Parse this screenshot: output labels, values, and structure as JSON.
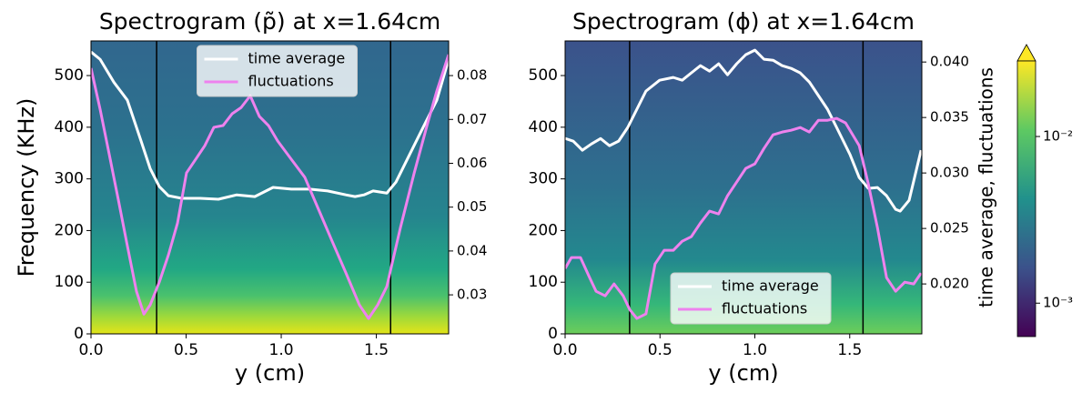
{
  "chart_data": [
    {
      "type": "line",
      "title": "Spectrogram (p̃) at x=1.64cm",
      "xlabel": "y (cm)",
      "ylabel": "Frequency (KHz)",
      "xlim": [
        0,
        1.88
      ],
      "xticks": [
        {
          "value": 0,
          "label": "0.0"
        },
        0.5,
        {
          "value": 1,
          "label": "1.0"
        },
        1.5
      ],
      "ylim": [
        0,
        567
      ],
      "yticks": [
        0,
        100,
        200,
        300,
        400,
        500
      ],
      "y2lim": [
        0.0211,
        0.0879
      ],
      "y2ticks": [
        0.03,
        0.04,
        0.05,
        0.06,
        0.07,
        0.08
      ],
      "vlines": [
        0.345,
        1.575
      ],
      "legend": "upper center",
      "series": [
        {
          "name": "time average",
          "color": "#ffffff",
          "axis": "y2",
          "x": [
            0,
            0.048,
            0.12,
            0.191,
            0.263,
            0.311,
            0.359,
            0.407,
            0.478,
            0.574,
            0.67,
            0.766,
            0.861,
            0.957,
            1.053,
            1.148,
            1.244,
            1.34,
            1.388,
            1.435,
            1.483,
            1.555,
            1.603,
            1.675,
            1.746,
            1.818,
            1.88
          ],
          "values": [
            0.0854,
            0.0837,
            0.0785,
            0.0744,
            0.0651,
            0.0588,
            0.0547,
            0.0526,
            0.052,
            0.052,
            0.0518,
            0.0528,
            0.0524,
            0.0545,
            0.0541,
            0.0541,
            0.0537,
            0.0528,
            0.0524,
            0.0528,
            0.0537,
            0.0532,
            0.0557,
            0.062,
            0.0682,
            0.0744,
            0.0837
          ]
        },
        {
          "name": "fluctuations",
          "color": "#ee82ee",
          "axis": "y2",
          "x": [
            0,
            0.048,
            0.096,
            0.144,
            0.191,
            0.239,
            0.278,
            0.311,
            0.359,
            0.407,
            0.455,
            0.502,
            0.55,
            0.598,
            0.646,
            0.694,
            0.742,
            0.789,
            0.837,
            0.885,
            0.933,
            0.981,
            1.053,
            1.124,
            1.196,
            1.268,
            1.34,
            1.411,
            1.459,
            1.507,
            1.555,
            1.627,
            1.699,
            1.77,
            1.818,
            1.88
          ],
          "values": [
            0.0817,
            0.0723,
            0.062,
            0.0516,
            0.0412,
            0.0308,
            0.0256,
            0.0277,
            0.0329,
            0.0391,
            0.0464,
            0.0578,
            0.0609,
            0.064,
            0.0682,
            0.0686,
            0.0713,
            0.0727,
            0.0754,
            0.0707,
            0.0686,
            0.0651,
            0.0609,
            0.0568,
            0.0495,
            0.0422,
            0.035,
            0.0277,
            0.0246,
            0.0277,
            0.0319,
            0.0454,
            0.0578,
            0.0692,
            0.0765,
            0.0848
          ]
        }
      ]
    },
    {
      "type": "line",
      "title": "Spectrogram (ϕ) at x=1.64cm",
      "xlabel": "y (cm)",
      "y2label": "time average, fluctuations",
      "xlim": [
        0,
        1.88
      ],
      "xticks": [
        {
          "value": 0,
          "label": "0.0"
        },
        0.5,
        {
          "value": 1,
          "label": "1.0"
        },
        1.5
      ],
      "ylim": [
        0,
        567
      ],
      "yticks": [
        0,
        100,
        200,
        300,
        400,
        500
      ],
      "y2lim": [
        0.0155,
        0.0419
      ],
      "y2ticks": [
        {
          "value": 0.02,
          "label": "0.020"
        },
        0.025,
        {
          "value": 0.03,
          "label": "0.030"
        },
        0.035,
        {
          "value": 0.04,
          "label": "0.040"
        }
      ],
      "vlines": [
        0.34,
        1.57
      ],
      "legend": "lower center",
      "series": [
        {
          "name": "time average",
          "color": "#ffffff",
          "axis": "y2",
          "x": [
            0,
            0.043,
            0.091,
            0.139,
            0.187,
            0.234,
            0.282,
            0.33,
            0.378,
            0.426,
            0.498,
            0.57,
            0.617,
            0.665,
            0.713,
            0.761,
            0.809,
            0.856,
            0.904,
            0.952,
            1.0,
            1.048,
            1.096,
            1.144,
            1.191,
            1.239,
            1.287,
            1.335,
            1.383,
            1.431,
            1.502,
            1.55,
            1.598,
            1.646,
            1.694,
            1.742,
            1.766,
            1.813,
            1.876
          ],
          "values": [
            0.03311,
            0.03287,
            0.03205,
            0.03262,
            0.0331,
            0.03246,
            0.03287,
            0.0341,
            0.03574,
            0.03738,
            0.03836,
            0.03861,
            0.03836,
            0.03902,
            0.03967,
            0.03918,
            0.03984,
            0.03885,
            0.03984,
            0.04066,
            0.04107,
            0.04025,
            0.04016,
            0.03967,
            0.03943,
            0.03902,
            0.0382,
            0.03697,
            0.03574,
            0.0341,
            0.03164,
            0.02959,
            0.02861,
            0.02869,
            0.02795,
            0.02672,
            0.02656,
            0.02754,
            0.03205
          ]
        },
        {
          "name": "fluctuations",
          "color": "#ee82ee",
          "axis": "y2",
          "x": [
            0,
            0.033,
            0.081,
            0.129,
            0.163,
            0.211,
            0.258,
            0.306,
            0.34,
            0.378,
            0.426,
            0.474,
            0.522,
            0.57,
            0.617,
            0.665,
            0.713,
            0.761,
            0.809,
            0.856,
            0.904,
            0.952,
            1.0,
            1.048,
            1.096,
            1.144,
            1.191,
            1.239,
            1.287,
            1.335,
            1.383,
            1.431,
            1.478,
            1.55,
            1.598,
            1.646,
            1.694,
            1.742,
            1.79,
            1.837,
            1.876
          ],
          "values": [
            0.02139,
            0.02238,
            0.02238,
            0.02057,
            0.01934,
            0.01893,
            0.02,
            0.01893,
            0.0177,
            0.01689,
            0.0173,
            0.0218,
            0.02303,
            0.02303,
            0.02385,
            0.02426,
            0.02549,
            0.02656,
            0.02631,
            0.02795,
            0.02918,
            0.03041,
            0.03082,
            0.03221,
            0.03344,
            0.03369,
            0.03385,
            0.0341,
            0.03369,
            0.03475,
            0.03475,
            0.03492,
            0.03451,
            0.03246,
            0.029,
            0.02508,
            0.02057,
            0.01934,
            0.02016,
            0.02,
            0.02098
          ]
        }
      ]
    },
    {
      "type": "colorbar",
      "log": true,
      "clim": [
        0.00063,
        0.0284
      ],
      "cticks": [
        {
          "value": 0.01,
          "label": "10⁻²"
        },
        {
          "value": 0.001,
          "label": "10⁻³"
        }
      ]
    }
  ]
}
